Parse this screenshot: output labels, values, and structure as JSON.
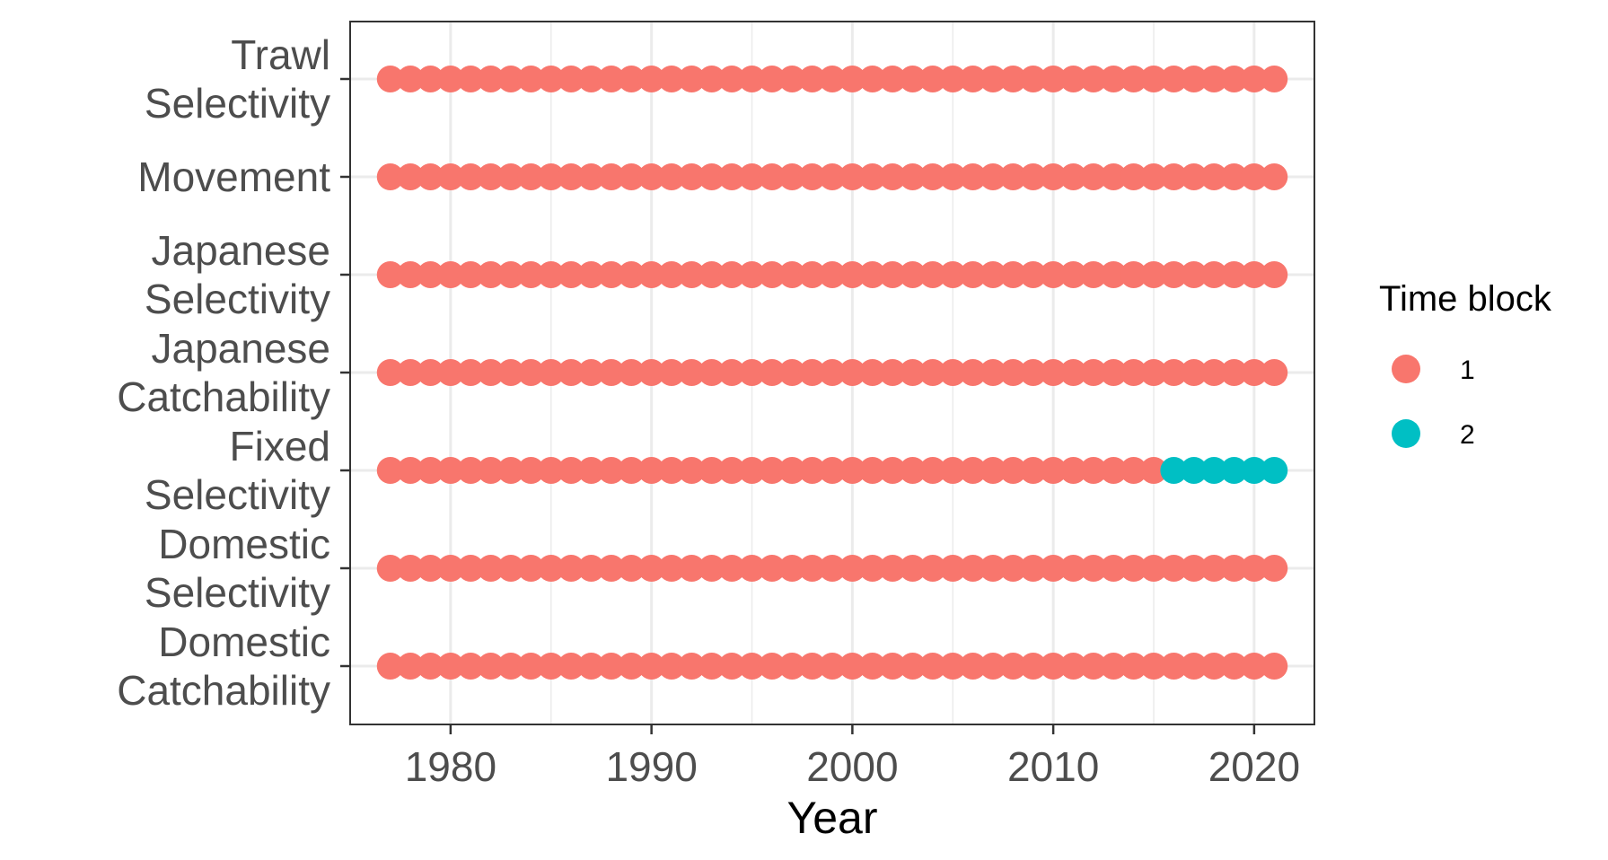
{
  "chart_data": {
    "type": "scatter",
    "categories": [
      "Domestic Catchability",
      "Domestic Selectivity",
      "Fixed Selectivity",
      "Japanese Catchability",
      "Japanese Selectivity",
      "Movement",
      "Trawl Selectivity"
    ],
    "category_lines": {
      "Domestic Catchability": [
        "Domestic",
        "Catchability"
      ],
      "Domestic Selectivity": [
        "Domestic",
        "Selectivity"
      ],
      "Fixed Selectivity": [
        "Fixed",
        "Selectivity"
      ],
      "Japanese Catchability": [
        "Japanese",
        "Catchability"
      ],
      "Japanese Selectivity": [
        "Japanese",
        "Selectivity"
      ],
      "Movement": [
        "Movement"
      ],
      "Trawl Selectivity": [
        "Trawl",
        "Selectivity"
      ]
    },
    "year_range": [
      1977,
      2021
    ],
    "block_2_start": {
      "Fixed Selectivity": 2016
    },
    "xlabel": "Year",
    "ylabel": "",
    "xlim": [
      1975,
      2023
    ],
    "xticks": [
      1980,
      1990,
      2000,
      2010,
      2020
    ],
    "grid": true,
    "legend": {
      "title": "Time block",
      "position": "right",
      "items": [
        {
          "label": "1",
          "color": "#F8766D"
        },
        {
          "label": "2",
          "color": "#00BFC4"
        }
      ]
    }
  }
}
